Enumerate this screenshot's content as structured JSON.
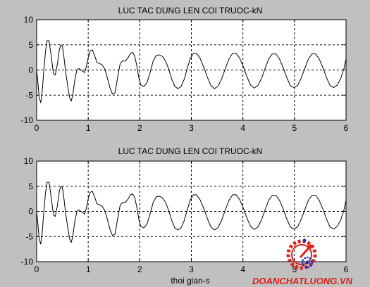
{
  "chart_data": [
    {
      "type": "line",
      "title": "LUC TAC DUNG LEN COI TRUOC-kN",
      "xlabel": "",
      "ylabel": "",
      "xlim": [
        0,
        6
      ],
      "ylim": [
        -10,
        10
      ],
      "xticks": [
        0,
        1,
        2,
        3,
        4,
        5,
        6
      ],
      "yticks": [
        -10,
        -5,
        0,
        5,
        10
      ],
      "xtick_labels": [
        "0",
        "1",
        "2",
        "3",
        "4",
        "5",
        "6"
      ],
      "ytick_labels": [
        "-10",
        "-5",
        "0",
        "5",
        "10"
      ],
      "grid": true,
      "line_color": "#000000",
      "series": [
        {
          "x": [
            0,
            0.02,
            0.05,
            0.08,
            0.11,
            0.14,
            0.17,
            0.2,
            0.24,
            0.28,
            0.31,
            0.33,
            0.36,
            0.4,
            0.44,
            0.47,
            0.5,
            0.53,
            0.56,
            0.6,
            0.64,
            0.67,
            0.7,
            0.74,
            0.78,
            0.82,
            0.86,
            0.9,
            0.93,
            0.96,
            1.0,
            1.04,
            1.08,
            1.12,
            1.17,
            1.22,
            1.27,
            1.32,
            1.37,
            1.42,
            1.47,
            1.52,
            1.57,
            1.62,
            1.67,
            1.72,
            1.77,
            1.82,
            1.86,
            1.9,
            1.94,
            1.98,
            2.02,
            2.08,
            2.14,
            2.2,
            2.26,
            2.32,
            2.38,
            2.44,
            2.5,
            2.56,
            2.62,
            2.68,
            2.74,
            2.8,
            2.86,
            2.92,
            2.98,
            3.04,
            3.1,
            3.17,
            3.24,
            3.31,
            3.38,
            3.45,
            3.52,
            3.59,
            3.66,
            3.73,
            3.8,
            3.87,
            3.94,
            4.01,
            4.08,
            4.15,
            4.22,
            4.29,
            4.36,
            4.43,
            4.5,
            4.57,
            4.64,
            4.71,
            4.78,
            4.85,
            4.92,
            4.99,
            5.06,
            5.13,
            5.2,
            5.27,
            5.34,
            5.41,
            5.48,
            5.55,
            5.62,
            5.69,
            5.76,
            5.83,
            5.9,
            5.96,
            6.0
          ],
          "y": [
            0,
            -2,
            -5.5,
            -6.5,
            -4,
            0,
            3.5,
            5.8,
            5.8,
            3,
            0.5,
            -0.8,
            -1,
            1,
            4,
            5,
            4.7,
            2.5,
            -0.2,
            -3,
            -5.5,
            -6.2,
            -5,
            -2,
            0,
            0.3,
            0,
            -0.3,
            -0.5,
            0.5,
            2.5,
            3.8,
            4,
            3,
            1.5,
            1.3,
            1,
            0.2,
            -1.5,
            -3.5,
            -4.8,
            -4.5,
            -1.5,
            1.3,
            1.8,
            1.8,
            2.4,
            3.3,
            3.5,
            2.8,
            1,
            -1.5,
            -3,
            -3.3,
            -2.5,
            -0.5,
            1.8,
            2.9,
            3,
            2.7,
            1.8,
            0.2,
            -1.8,
            -3.3,
            -3.7,
            -3.3,
            -1.9,
            0.3,
            2.3,
            3.3,
            3.3,
            2.3,
            0.6,
            -1.4,
            -3.1,
            -3.7,
            -3.2,
            -1.7,
            0.3,
            2.2,
            3.3,
            3.3,
            2.3,
            0.6,
            -1.4,
            -3,
            -3.6,
            -3.1,
            -1.7,
            0.3,
            2.2,
            3.2,
            3.2,
            2.2,
            0.5,
            -1.5,
            -3.1,
            -3.5,
            -3.1,
            -1.6,
            0.3,
            2.2,
            3.2,
            3.2,
            2.2,
            0.5,
            -1.5,
            -3.1,
            -3.5,
            -3,
            -1.6,
            0.3,
            2.2
          ]
        }
      ]
    },
    {
      "type": "line",
      "title": "LUC TAC DUNG LEN COI TRUOC-kN",
      "xlabel": "thoi gian-s",
      "ylabel": "",
      "xlim": [
        0,
        6
      ],
      "ylim": [
        -10,
        10
      ],
      "xticks": [
        0,
        1,
        2,
        3,
        4,
        5,
        6
      ],
      "yticks": [
        -10,
        -5,
        0,
        5,
        10
      ],
      "xtick_labels": [
        "0",
        "1",
        "2",
        "3",
        "4",
        "5",
        "6"
      ],
      "ytick_labels": [
        "-10",
        "-5",
        "0",
        "5",
        "10"
      ],
      "grid": true,
      "line_color": "#000000",
      "series": [
        {
          "x": [
            0,
            0.02,
            0.05,
            0.08,
            0.11,
            0.14,
            0.17,
            0.2,
            0.24,
            0.28,
            0.31,
            0.33,
            0.36,
            0.4,
            0.44,
            0.47,
            0.5,
            0.53,
            0.56,
            0.6,
            0.64,
            0.67,
            0.7,
            0.74,
            0.78,
            0.82,
            0.86,
            0.9,
            0.93,
            0.96,
            1.0,
            1.04,
            1.08,
            1.12,
            1.17,
            1.22,
            1.27,
            1.32,
            1.37,
            1.42,
            1.47,
            1.52,
            1.57,
            1.62,
            1.67,
            1.72,
            1.77,
            1.82,
            1.86,
            1.9,
            1.94,
            1.98,
            2.02,
            2.08,
            2.14,
            2.2,
            2.26,
            2.32,
            2.38,
            2.44,
            2.5,
            2.56,
            2.62,
            2.68,
            2.74,
            2.8,
            2.86,
            2.92,
            2.98,
            3.04,
            3.1,
            3.17,
            3.24,
            3.31,
            3.38,
            3.45,
            3.52,
            3.59,
            3.66,
            3.73,
            3.8,
            3.87,
            3.94,
            4.01,
            4.08,
            4.15,
            4.22,
            4.29,
            4.36,
            4.43,
            4.5,
            4.57,
            4.64,
            4.71,
            4.78,
            4.85,
            4.92,
            4.99,
            5.06,
            5.13,
            5.2,
            5.27,
            5.34,
            5.41,
            5.48,
            5.55,
            5.62,
            5.69,
            5.76,
            5.83,
            5.9,
            5.96,
            6.0
          ],
          "y": [
            0,
            -2,
            -5.5,
            -6.5,
            -4,
            0,
            3.5,
            5.8,
            5.8,
            3,
            0.5,
            -0.8,
            -1,
            1,
            4,
            5,
            4.7,
            2.5,
            -0.2,
            -3,
            -5.5,
            -6.2,
            -5,
            -2,
            0,
            0.3,
            0,
            -0.3,
            -0.5,
            0.5,
            2.5,
            3.8,
            4,
            3,
            1.5,
            1.3,
            1,
            0.2,
            -1.5,
            -3.5,
            -4.8,
            -4.5,
            -1.5,
            1.3,
            1.8,
            1.8,
            2.4,
            3.3,
            3.5,
            2.8,
            1,
            -1.5,
            -3,
            -3.3,
            -2.5,
            -0.5,
            1.8,
            2.9,
            3,
            2.7,
            1.8,
            0.2,
            -1.8,
            -3.3,
            -3.7,
            -3.3,
            -1.9,
            0.3,
            2.3,
            3.3,
            3.3,
            2.3,
            0.6,
            -1.4,
            -3.1,
            -3.7,
            -3.2,
            -1.7,
            0.3,
            2.2,
            3.3,
            3.3,
            2.3,
            0.6,
            -1.4,
            -3,
            -3.6,
            -3.1,
            -1.7,
            0.3,
            2.2,
            3.2,
            3.2,
            2.2,
            0.5,
            -1.5,
            -3.1,
            -3.5,
            -3.1,
            -1.6,
            0.3,
            2.2,
            3.2,
            3.2,
            2.2,
            0.5,
            -1.5,
            -3.1,
            -3.5,
            -3,
            -1.6,
            0.3,
            2.2
          ]
        }
      ]
    }
  ],
  "watermark": {
    "text": "DOANCHATLUONG.VN",
    "color": "#e0201c",
    "icon": "gear-compass-logo-icon"
  },
  "colors": {
    "figure_background": "#c0c0c0",
    "axes_background": "#ffffff",
    "grid": "#000000",
    "line": "#000000"
  }
}
